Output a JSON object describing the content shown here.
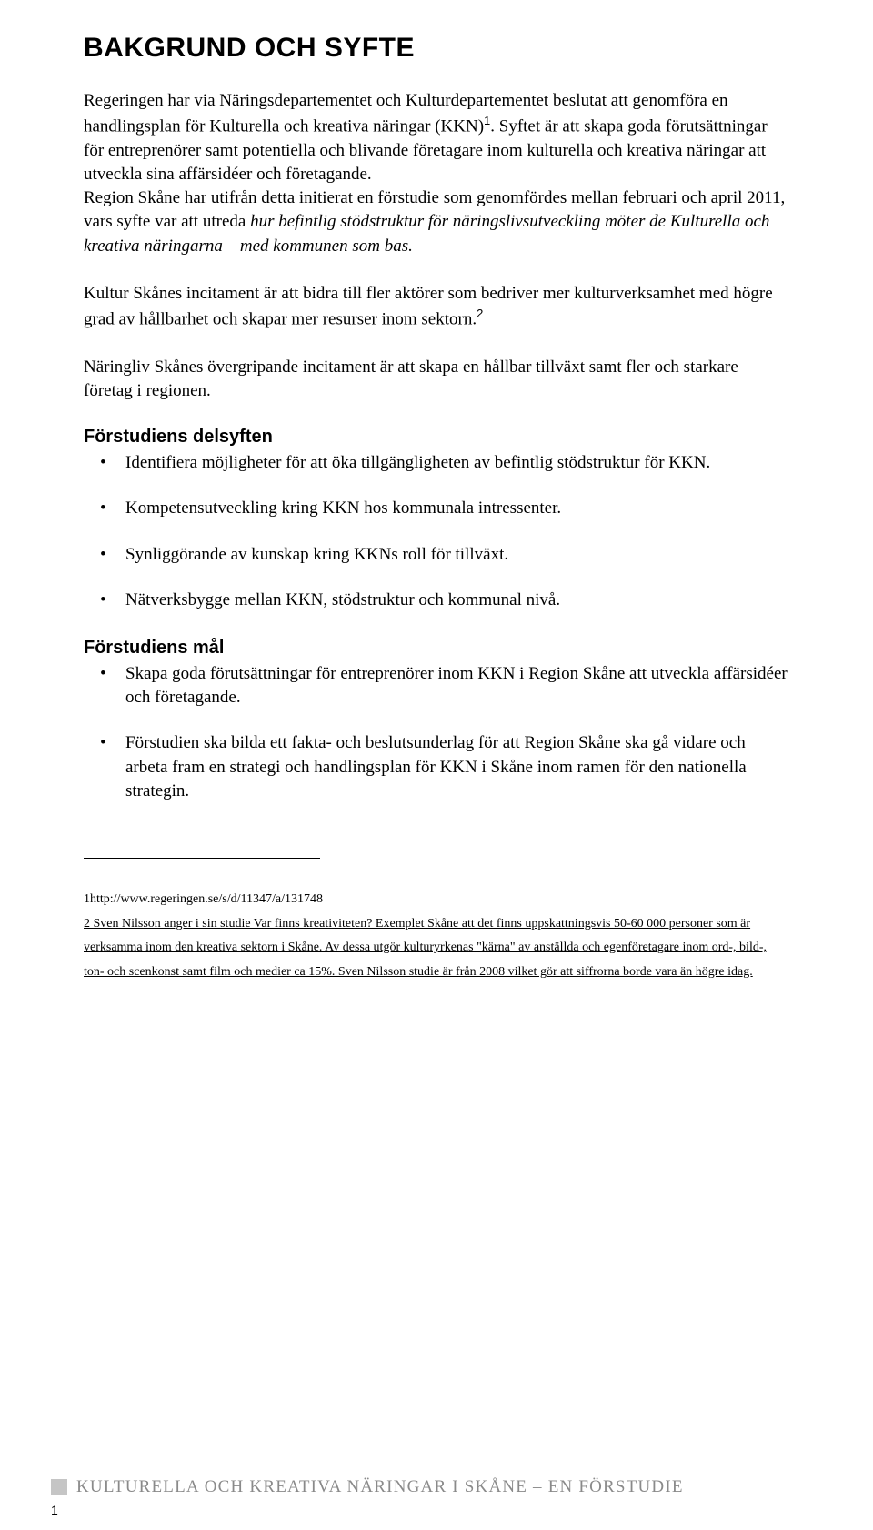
{
  "heading": "BAKGRUND OCH SYFTE",
  "para1": {
    "a": "Regeringen har via Näringsdepartementet och Kulturdepartementet beslutat att genomföra en handlingsplan för Kulturella och kreativa näringar (KKN)",
    "sup": "1",
    "b": ". Syftet är att skapa goda förutsättningar för entreprenörer samt potentiella och blivande företagare inom kulturella och kreativa näringar att utveckla sina affärsidéer och företagande.",
    "c": "Region Skåne har utifrån detta initierat en förstudie som genomfördes mellan februari och april 2011, vars syfte var att utreda ",
    "italic": "hur befintlig stödstruktur för näringslivsutveckling möter de Kulturella och kreativa näringarna – med kommunen som bas."
  },
  "para2": {
    "a": "Kultur Skånes incitament är att bidra till fler aktörer som bedriver mer kulturverksamhet med högre grad av hållbarhet och skapar mer resurser inom sektorn.",
    "sup": "2"
  },
  "para3": "Näringliv Skånes övergripande incitament är att skapa en hållbar tillväxt samt fler och starkare företag i regionen.",
  "sub1": "Förstudiens delsyften",
  "list1": [
    "Identifiera möjligheter för att öka tillgängligheten av befintlig stödstruktur för KKN.",
    "Kompetensutveckling kring KKN hos kommunala intressenter.",
    "Synliggörande av kunskap kring KKNs roll för tillväxt.",
    "Nätverksbygge mellan KKN, stödstruktur och kommunal nivå."
  ],
  "sub2": "Förstudiens mål",
  "list2": [
    "Skapa goda förutsättningar för entreprenörer inom KKN i Region Skåne att utveckla affärsidéer och företagande.",
    "Förstudien ska bilda ett fakta- och beslutsunderlag för att Region Skåne ska gå vidare och arbeta fram en strategi och handlingsplan för KKN i Skåne inom ramen för den nationella strategin."
  ],
  "footnote1": "1http://www.regeringen.se/s/d/11347/a/131748",
  "footnote2": "2 Sven Nilsson anger i sin studie Var finns kreativiteten? Exemplet Skåne att det finns uppskattningsvis 50-60 000 personer som är verksamma inom den kreativa sektorn i Skåne. Av dessa utgör kulturyrkenas \"kärna\" av anställda och egenföretagare inom ord-, bild-, ton- och scenkonst samt film och medier ca 15%. Sven Nilsson studie är från 2008 vilket gör att siffrorna borde vara än högre idag.",
  "footerText": "KULTURELLA OCH KREATIVA NÄRINGAR I SKÅNE – EN FÖRSTUDIE",
  "pageNum": "1",
  "colors": {
    "text": "#000000",
    "footerGray": "#8a8a8a",
    "squareGray": "#c5c5c5",
    "bg": "#ffffff"
  },
  "fonts": {
    "headingFamily": "Arial",
    "bodyFamily": "Garamond",
    "headingSize": 30,
    "bodySize": 19,
    "subheadSize": 20,
    "footnoteSize": 14
  }
}
